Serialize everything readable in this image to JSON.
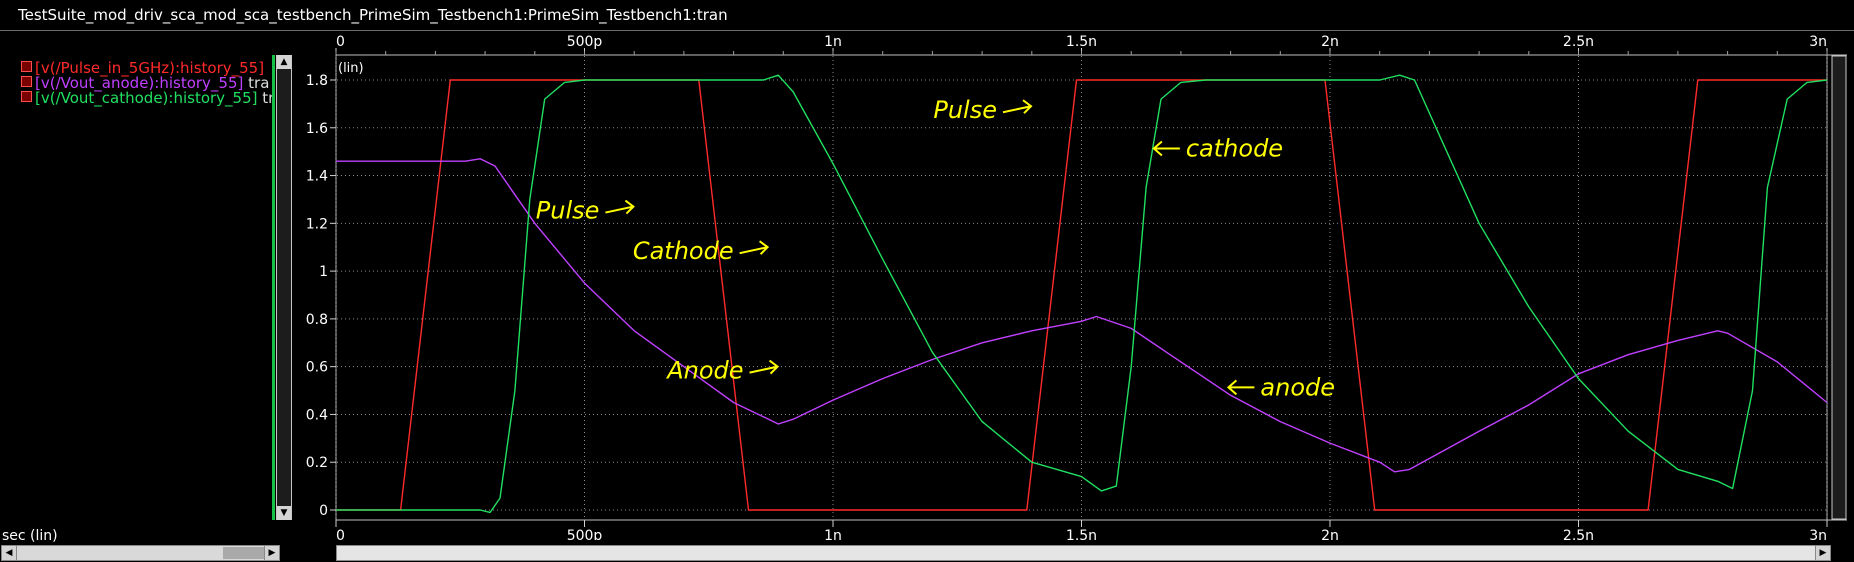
{
  "window": {
    "title": "TestSuite_mod_driv_sca_mod_sca_testbench_PrimeSim_Testbench1:PrimeSim_Testbench1:tran"
  },
  "legend": [
    {
      "label": "[v(/Pulse_in_5GHz):history_55]",
      "suffix": "t",
      "color": "#ff2a2a"
    },
    {
      "label": "[v(/Vout_anode):history_55]",
      "suffix": "tra",
      "color": "#c040ff"
    },
    {
      "label": "[v(/Vout_cathode):history_55]",
      "suffix": "tr",
      "color": "#20e060"
    }
  ],
  "axis_labels": {
    "y_scale": "(lin)",
    "x_bottom": "sec (lin)"
  },
  "chart_data": {
    "type": "line",
    "title": "",
    "xlabel": "sec (lin)",
    "ylabel": "(lin)",
    "xlim": [
      0,
      3e-09
    ],
    "ylim": [
      0,
      1.8
    ],
    "grid": true,
    "legend_position": "left-panel",
    "x_ticks": [
      {
        "v": 0,
        "label": "0"
      },
      {
        "v": 5e-10,
        "label": "500p"
      },
      {
        "v": 1e-09,
        "label": "1n"
      },
      {
        "v": 1.5e-09,
        "label": "1.5n"
      },
      {
        "v": 2e-09,
        "label": "2n"
      },
      {
        "v": 2.5e-09,
        "label": "2.5n"
      },
      {
        "v": 3e-09,
        "label": "3n"
      }
    ],
    "y_ticks": [
      {
        "v": 0,
        "label": "0"
      },
      {
        "v": 0.2,
        "label": "0.2"
      },
      {
        "v": 0.4,
        "label": "0.4"
      },
      {
        "v": 0.6,
        "label": "0.6"
      },
      {
        "v": 0.8,
        "label": "0.8"
      },
      {
        "v": 1.0,
        "label": "1"
      },
      {
        "v": 1.2,
        "label": "1.2"
      },
      {
        "v": 1.4,
        "label": "1.4"
      },
      {
        "v": 1.6,
        "label": "1.6"
      },
      {
        "v": 1.8,
        "label": "1.8"
      }
    ],
    "series": [
      {
        "name": "[v(/Pulse_in_5GHz):history_55]",
        "color": "#ff2a2a",
        "x": [
          0,
          1.3e-10,
          2.3e-10,
          7.3e-10,
          8.3e-10,
          1.39e-09,
          1.49e-09,
          1.99e-09,
          2.09e-09,
          2.64e-09,
          2.74e-09,
          3e-09
        ],
        "y": [
          0,
          0,
          1.8,
          1.8,
          0,
          0,
          1.8,
          1.8,
          0,
          0,
          1.8,
          1.8
        ]
      },
      {
        "name": "[v(/Vout_anode):history_55]",
        "color": "#c040ff",
        "x": [
          0,
          2.6e-10,
          2.9e-10,
          3.2e-10,
          4e-10,
          5e-10,
          6e-10,
          7e-10,
          8e-10,
          8.6e-10,
          8.9e-10,
          9.2e-10,
          1e-09,
          1.1e-09,
          1.2e-09,
          1.3e-09,
          1.4e-09,
          1.5e-09,
          1.53e-09,
          1.6e-09,
          1.7e-09,
          1.8e-09,
          1.9e-09,
          2e-09,
          2.1e-09,
          2.13e-09,
          2.16e-09,
          2.3e-09,
          2.4e-09,
          2.5e-09,
          2.6e-09,
          2.7e-09,
          2.78e-09,
          2.8e-09,
          2.9e-09,
          3e-09
        ],
        "y": [
          1.46,
          1.46,
          1.47,
          1.44,
          1.2,
          0.95,
          0.75,
          0.6,
          0.45,
          0.39,
          0.36,
          0.38,
          0.46,
          0.55,
          0.63,
          0.7,
          0.75,
          0.79,
          0.81,
          0.76,
          0.62,
          0.48,
          0.37,
          0.28,
          0.2,
          0.16,
          0.17,
          0.33,
          0.44,
          0.57,
          0.65,
          0.71,
          0.75,
          0.74,
          0.62,
          0.45
        ]
      },
      {
        "name": "[v(/Vout_cathode):history_55]",
        "color": "#20e060",
        "x": [
          0,
          2.6e-10,
          2.9e-10,
          3.1e-10,
          3.3e-10,
          3.6e-10,
          3.9e-10,
          4.2e-10,
          4.6e-10,
          5e-10,
          8.6e-10,
          8.9e-10,
          9.2e-10,
          1e-09,
          1.1e-09,
          1.2e-09,
          1.3e-09,
          1.4e-09,
          1.5e-09,
          1.54e-09,
          1.57e-09,
          1.6e-09,
          1.63e-09,
          1.66e-09,
          1.7e-09,
          1.75e-09,
          2.1e-09,
          2.14e-09,
          2.17e-09,
          2.3e-09,
          2.4e-09,
          2.5e-09,
          2.6e-09,
          2.7e-09,
          2.78e-09,
          2.81e-09,
          2.85e-09,
          2.88e-09,
          2.92e-09,
          2.96e-09,
          3e-09
        ],
        "y": [
          0,
          0,
          0,
          -0.01,
          0.05,
          0.5,
          1.3,
          1.72,
          1.79,
          1.8,
          1.8,
          1.82,
          1.75,
          1.45,
          1.05,
          0.66,
          0.37,
          0.2,
          0.14,
          0.08,
          0.1,
          0.6,
          1.35,
          1.72,
          1.79,
          1.8,
          1.8,
          1.82,
          1.8,
          1.2,
          0.85,
          0.55,
          0.33,
          0.17,
          0.12,
          0.09,
          0.5,
          1.35,
          1.72,
          1.79,
          1.8
        ]
      }
    ],
    "annotations": [
      {
        "text": "Pulse",
        "x": 5.3e-10,
        "y": 1.22,
        "arrow": "right",
        "color": "#ffff00"
      },
      {
        "text": "Cathode",
        "x": 8e-10,
        "y": 1.05,
        "arrow": "right",
        "color": "#ffff00"
      },
      {
        "text": "Anode",
        "x": 8.2e-10,
        "y": 0.55,
        "arrow": "right",
        "color": "#ffff00"
      },
      {
        "text": "Pulse",
        "x": 1.33e-09,
        "y": 1.64,
        "arrow": "right",
        "color": "#ffff00"
      },
      {
        "text": "cathode",
        "x": 1.71e-09,
        "y": 1.48,
        "arrow": "left",
        "color": "#ffff00"
      },
      {
        "text": "anode",
        "x": 1.86e-09,
        "y": 0.48,
        "arrow": "left",
        "color": "#ffff00"
      }
    ]
  }
}
